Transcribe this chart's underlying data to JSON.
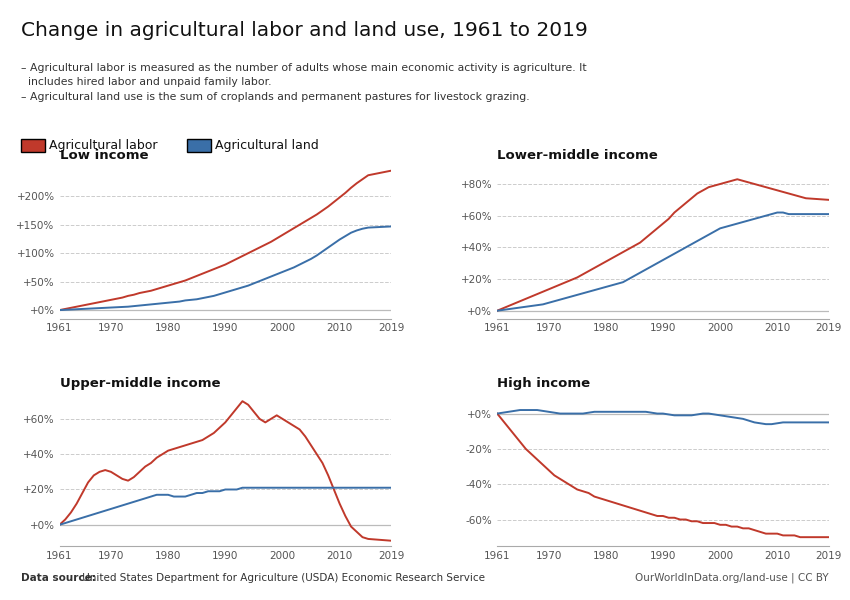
{
  "title": "Change in agricultural labor and land use, 1961 to 2019",
  "subtitle_lines": [
    "– Agricultural labor is measured as the number of adults whose main economic activity is agriculture. It",
    "  includes hired labor and unpaid family labor.",
    "– Agricultural land use is the sum of croplands and permanent pastures for livestock grazing."
  ],
  "legend_labor": "Agricultural labor",
  "legend_land": "Agricultural land",
  "color_labor": "#c0392b",
  "color_land": "#3a6fa8",
  "color_zero_line": "#bbbbbb",
  "datasource_bold": "Data source:",
  "datasource_rest": " United States Department for Agriculture (USDA) Economic Research Service",
  "credit": "OurWorldInData.org/land-use | CC BY",
  "panels": [
    {
      "title": "Low income",
      "yticks": [
        0,
        50,
        100,
        150,
        200
      ],
      "ytick_labels": [
        "+0%",
        "+50%",
        "+100%",
        "+150%",
        "+200%"
      ],
      "ylim": [
        -15,
        255
      ],
      "labor": [
        0,
        2,
        4,
        6,
        8,
        10,
        12,
        14,
        16,
        18,
        20,
        22,
        25,
        27,
        30,
        32,
        34,
        37,
        40,
        43,
        46,
        49,
        52,
        56,
        60,
        64,
        68,
        72,
        76,
        80,
        85,
        90,
        95,
        100,
        105,
        110,
        115,
        120,
        126,
        132,
        138,
        144,
        150,
        156,
        162,
        168,
        175,
        182,
        190,
        198,
        206,
        215,
        223,
        230,
        237,
        245
      ],
      "land": [
        0,
        0.5,
        1,
        1.5,
        2,
        2.5,
        3,
        3.5,
        4,
        4.5,
        5,
        5.5,
        6,
        7,
        8,
        9,
        10,
        11,
        12,
        13,
        14,
        15,
        17,
        18,
        19,
        21,
        23,
        25,
        28,
        31,
        34,
        37,
        40,
        43,
        47,
        51,
        55,
        59,
        63,
        67,
        71,
        75,
        80,
        85,
        90,
        96,
        103,
        110,
        117,
        124,
        130,
        136,
        140,
        143,
        145,
        147
      ]
    },
    {
      "title": "Lower-middle income",
      "yticks": [
        0,
        20,
        40,
        60,
        80
      ],
      "ytick_labels": [
        "+0%",
        "+20%",
        "+40%",
        "+60%",
        "+80%"
      ],
      "ylim": [
        -5,
        92
      ],
      "labor": [
        0,
        1.5,
        3,
        4.5,
        6,
        7.5,
        9,
        10.5,
        12,
        13.5,
        15,
        16.5,
        18,
        19.5,
        21,
        23,
        25,
        27,
        29,
        31,
        33,
        35,
        37,
        39,
        41,
        43,
        46,
        49,
        52,
        55,
        58,
        62,
        65,
        68,
        71,
        74,
        76,
        78,
        79,
        80,
        81,
        82,
        83,
        82,
        81,
        80,
        79,
        78,
        77,
        76,
        75,
        74,
        73,
        72,
        71,
        70
      ],
      "land": [
        0,
        0.5,
        1,
        1.5,
        2,
        2.5,
        3,
        3.5,
        4,
        5,
        6,
        7,
        8,
        9,
        10,
        11,
        12,
        13,
        14,
        15,
        16,
        17,
        18,
        20,
        22,
        24,
        26,
        28,
        30,
        32,
        34,
        36,
        38,
        40,
        42,
        44,
        46,
        48,
        50,
        52,
        53,
        54,
        55,
        56,
        57,
        58,
        59,
        60,
        61,
        62,
        62,
        61,
        61,
        61,
        61,
        61
      ]
    },
    {
      "title": "Upper-middle income",
      "yticks": [
        0,
        20,
        40,
        60
      ],
      "ytick_labels": [
        "+0%",
        "+20%",
        "+40%",
        "+60%"
      ],
      "ylim": [
        -12,
        75
      ],
      "labor": [
        0,
        3,
        7,
        12,
        18,
        24,
        28,
        30,
        31,
        30,
        28,
        26,
        25,
        27,
        30,
        33,
        35,
        38,
        40,
        42,
        43,
        44,
        45,
        46,
        47,
        48,
        50,
        52,
        55,
        58,
        62,
        66,
        70,
        68,
        64,
        60,
        58,
        60,
        62,
        60,
        58,
        56,
        54,
        50,
        45,
        40,
        35,
        28,
        20,
        12,
        5,
        -1,
        -4,
        -7,
        -8,
        -9
      ],
      "land": [
        0,
        1,
        2,
        3,
        4,
        5,
        6,
        7,
        8,
        9,
        10,
        11,
        12,
        13,
        14,
        15,
        16,
        17,
        17,
        17,
        16,
        16,
        16,
        17,
        18,
        18,
        19,
        19,
        19,
        20,
        20,
        20,
        21,
        21,
        21,
        21,
        21,
        21,
        21,
        21,
        21,
        21,
        21,
        21,
        21,
        21,
        21,
        21,
        21,
        21,
        21,
        21,
        21,
        21,
        21,
        21
      ]
    },
    {
      "title": "High income",
      "yticks": [
        -60,
        -40,
        -20,
        0
      ],
      "ytick_labels": [
        "-60%",
        "-40%",
        "-20%",
        "+0%"
      ],
      "ylim": [
        -75,
        12
      ],
      "labor": [
        0,
        -4,
        -8,
        -12,
        -16,
        -20,
        -23,
        -26,
        -29,
        -32,
        -35,
        -37,
        -39,
        -41,
        -43,
        -44,
        -45,
        -47,
        -48,
        -49,
        -50,
        -51,
        -52,
        -53,
        -54,
        -55,
        -56,
        -57,
        -58,
        -58,
        -59,
        -59,
        -60,
        -60,
        -61,
        -61,
        -62,
        -62,
        -62,
        -63,
        -63,
        -64,
        -64,
        -65,
        -65,
        -66,
        -67,
        -68,
        -68,
        -68,
        -69,
        -69,
        -69,
        -70,
        -70,
        -70
      ],
      "land": [
        0,
        0.5,
        1,
        1.5,
        2,
        2,
        2,
        2,
        1.5,
        1,
        0.5,
        0,
        0,
        0,
        0,
        0,
        0.5,
        1,
        1,
        1,
        1,
        1,
        1,
        1,
        1,
        1,
        1,
        0.5,
        0,
        0,
        -0.5,
        -1,
        -1,
        -1,
        -1,
        -0.5,
        0,
        0,
        -0.5,
        -1,
        -1.5,
        -2,
        -2.5,
        -3,
        -4,
        -5,
        -5.5,
        -6,
        -6,
        -5.5,
        -5,
        -5,
        -5,
        -5,
        -5,
        -5
      ]
    }
  ],
  "years": [
    1961,
    1962,
    1963,
    1964,
    1965,
    1966,
    1967,
    1968,
    1969,
    1970,
    1971,
    1972,
    1973,
    1974,
    1975,
    1976,
    1977,
    1978,
    1979,
    1980,
    1981,
    1982,
    1983,
    1984,
    1985,
    1986,
    1987,
    1988,
    1989,
    1990,
    1991,
    1992,
    1993,
    1994,
    1995,
    1996,
    1997,
    1998,
    1999,
    2000,
    2001,
    2002,
    2003,
    2004,
    2005,
    2006,
    2007,
    2008,
    2009,
    2010,
    2011,
    2012,
    2013,
    2014,
    2015,
    2019
  ],
  "xticks": [
    1961,
    1970,
    1980,
    1990,
    2000,
    2010,
    2019
  ],
  "background_color": "#ffffff",
  "grid_color": "#cccccc",
  "owid_box_color": "#2c3e6b",
  "owid_text_color": "#ffffff"
}
